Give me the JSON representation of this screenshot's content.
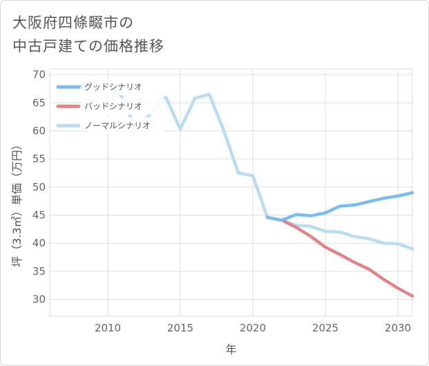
{
  "title_lines": [
    "大阪府四條畷市の",
    "中古戸建ての価格推移"
  ],
  "chart_data": {
    "type": "line",
    "xlabel": "年",
    "ylabel": "坪（3.3㎡）単価（万円）",
    "xlim": [
      2006,
      2031
    ],
    "ylim": [
      27,
      71
    ],
    "xticks": [
      2010,
      2015,
      2020,
      2025,
      2030
    ],
    "yticks": [
      30,
      35,
      40,
      45,
      50,
      55,
      60,
      65,
      70
    ],
    "grid": true,
    "legend_position": "top-left",
    "series": [
      {
        "name": "グッドシナリオ",
        "color": "#7abcf0",
        "x": [
          2021,
          2022,
          2023,
          2024,
          2025,
          2026,
          2027,
          2028,
          2029,
          2030,
          2031
        ],
        "y": [
          44.6,
          44.1,
          45.1,
          44.9,
          45.4,
          46.6,
          46.8,
          47.4,
          48.0,
          48.4,
          49.0
        ]
      },
      {
        "name": "バッドシナリオ",
        "color": "#e0848a",
        "x": [
          2021,
          2022,
          2023,
          2024,
          2025,
          2026,
          2027,
          2028,
          2029,
          2030,
          2031
        ],
        "y": [
          44.6,
          44.1,
          42.8,
          41.2,
          39.3,
          38.0,
          36.6,
          35.4,
          33.6,
          32.0,
          30.6
        ]
      },
      {
        "name": "ノーマルシナリオ",
        "color": "#b9dcee",
        "x": [
          2008,
          2009,
          2010,
          2011,
          2012,
          2013,
          2014,
          2015,
          2016,
          2017,
          2018,
          2019,
          2020,
          2021,
          2022,
          2023,
          2024,
          2025,
          2026,
          2027,
          2028,
          2029,
          2030,
          2031
        ],
        "y": [
          67.8,
          69.0,
          68.6,
          66.0,
          59.8,
          63.3,
          66.0,
          60.3,
          65.8,
          66.5,
          60.0,
          52.5,
          52.0,
          44.6,
          44.1,
          43.2,
          43.0,
          42.1,
          42.0,
          41.2,
          40.8,
          40.0,
          39.9,
          39.0
        ]
      }
    ]
  }
}
